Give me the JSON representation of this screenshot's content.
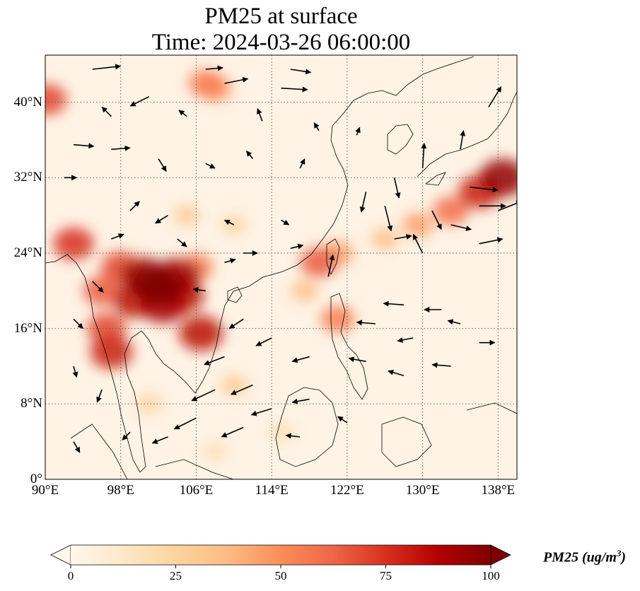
{
  "title": {
    "line1": "PM25 at surface",
    "line2": "Time: 2024-03-26 06:00:00"
  },
  "map": {
    "projection": "PlateCarree",
    "lon_range": [
      90,
      140
    ],
    "lat_range": [
      0,
      45
    ],
    "grid_style": "dotted",
    "background_color": "#fef3e5",
    "lat_ticks": [
      {
        "value": 0,
        "label": "0°"
      },
      {
        "value": 8,
        "label": "8°N"
      },
      {
        "value": 16,
        "label": "16°N"
      },
      {
        "value": 24,
        "label": "24°N"
      },
      {
        "value": 32,
        "label": "32°N"
      },
      {
        "value": 40,
        "label": "40°N"
      }
    ],
    "lon_ticks": [
      {
        "value": 90,
        "label": "90°E"
      },
      {
        "value": 98,
        "label": "98°E"
      },
      {
        "value": 106,
        "label": "106°E"
      },
      {
        "value": 114,
        "label": "114°E"
      },
      {
        "value": 122,
        "label": "122°E"
      },
      {
        "value": 130,
        "label": "130°E"
      },
      {
        "value": 138,
        "label": "138°E"
      }
    ]
  },
  "pm25_field": [
    {
      "lon": 102.0,
      "lat": 20.5,
      "value": 100
    },
    {
      "lon": 100.5,
      "lat": 21.5,
      "value": 95
    },
    {
      "lon": 104.0,
      "lat": 21.5,
      "value": 92
    },
    {
      "lon": 102.5,
      "lat": 18.5,
      "value": 90
    },
    {
      "lon": 99.5,
      "lat": 19.0,
      "value": 85
    },
    {
      "lon": 104.5,
      "lat": 19.5,
      "value": 85
    },
    {
      "lon": 106.5,
      "lat": 15.5,
      "value": 85
    },
    {
      "lon": 97.0,
      "lat": 13.5,
      "value": 80
    },
    {
      "lon": 96.5,
      "lat": 16.0,
      "value": 70
    },
    {
      "lon": 96.0,
      "lat": 20.0,
      "value": 65
    },
    {
      "lon": 93.0,
      "lat": 25.0,
      "value": 75
    },
    {
      "lon": 98.0,
      "lat": 22.5,
      "value": 70
    },
    {
      "lon": 106.0,
      "lat": 22.5,
      "value": 55
    },
    {
      "lon": 90.2,
      "lat": 40.3,
      "value": 70
    },
    {
      "lon": 107.0,
      "lat": 42.0,
      "value": 55
    },
    {
      "lon": 108.0,
      "lat": 41.5,
      "value": 50
    },
    {
      "lon": 138.5,
      "lat": 32.0,
      "value": 95
    },
    {
      "lon": 136.0,
      "lat": 30.5,
      "value": 80
    },
    {
      "lon": 133.0,
      "lat": 28.5,
      "value": 60
    },
    {
      "lon": 129.5,
      "lat": 27.0,
      "value": 45
    },
    {
      "lon": 126.0,
      "lat": 25.5,
      "value": 35
    },
    {
      "lon": 119.0,
      "lat": 23.0,
      "value": 65
    },
    {
      "lon": 121.0,
      "lat": 24.0,
      "value": 45
    },
    {
      "lon": 117.5,
      "lat": 20.0,
      "value": 35
    },
    {
      "lon": 121.0,
      "lat": 17.0,
      "value": 55
    },
    {
      "lon": 110.0,
      "lat": 27.0,
      "value": 25
    },
    {
      "lon": 105.0,
      "lat": 28.0,
      "value": 30
    },
    {
      "lon": 110.0,
      "lat": 10.0,
      "value": 30
    },
    {
      "lon": 101.0,
      "lat": 8.0,
      "value": 25
    },
    {
      "lon": 108.0,
      "lat": 3.0,
      "value": 20
    },
    {
      "lon": 115.0,
      "lat": 5.0,
      "value": 20
    }
  ],
  "wind_vectors": [
    {
      "lon": 101,
      "lat": 40.6,
      "u": -1.2,
      "v": -0.6
    },
    {
      "lon": 109,
      "lat": 42.0,
      "u": 1.5,
      "v": 0.3
    },
    {
      "lon": 116,
      "lat": 43.5,
      "u": 1.3,
      "v": -0.2
    },
    {
      "lon": 107,
      "lat": 43.5,
      "u": 1.1,
      "v": 0.1
    },
    {
      "lon": 95,
      "lat": 43.5,
      "u": 1.8,
      "v": 0.2
    },
    {
      "lon": 115,
      "lat": 41.5,
      "u": 1.7,
      "v": -0.1
    },
    {
      "lon": 93,
      "lat": 35.5,
      "u": 1.3,
      "v": -0.1
    },
    {
      "lon": 97,
      "lat": 35.0,
      "u": 1.2,
      "v": 0.1
    },
    {
      "lon": 92,
      "lat": 32.0,
      "u": 0.8,
      "v": 0.0
    },
    {
      "lon": 102,
      "lat": 34.0,
      "u": 0.5,
      "v": -0.8
    },
    {
      "lon": 107,
      "lat": 33.5,
      "u": 0.6,
      "v": -0.3
    },
    {
      "lon": 112,
      "lat": 34.0,
      "u": -0.4,
      "v": 0.5
    },
    {
      "lon": 117,
      "lat": 33.0,
      "u": 0.3,
      "v": 0.6
    },
    {
      "lon": 99,
      "lat": 28.5,
      "u": 0.6,
      "v": 0.6
    },
    {
      "lon": 103,
      "lat": 28.0,
      "u": -0.8,
      "v": -0.5
    },
    {
      "lon": 110,
      "lat": 27.0,
      "u": -0.6,
      "v": 0.3
    },
    {
      "lon": 115,
      "lat": 27.5,
      "u": 0.5,
      "v": -0.3
    },
    {
      "lon": 111,
      "lat": 24.0,
      "u": 0.9,
      "v": 0.0
    },
    {
      "lon": 116,
      "lat": 24.5,
      "u": 0.8,
      "v": 0.2
    },
    {
      "lon": 120,
      "lat": 21.5,
      "u": 0.3,
      "v": 1.4
    },
    {
      "lon": 124,
      "lat": 30.5,
      "u": -0.3,
      "v": -1.3
    },
    {
      "lon": 126,
      "lat": 29.0,
      "u": 0.4,
      "v": -1.6
    },
    {
      "lon": 127,
      "lat": 32.0,
      "u": 0.3,
      "v": -1.3
    },
    {
      "lon": 130,
      "lat": 33.0,
      "u": 0.1,
      "v": 1.6
    },
    {
      "lon": 131,
      "lat": 28.5,
      "u": 0.6,
      "v": -1.2
    },
    {
      "lon": 134,
      "lat": 35.0,
      "u": 0.2,
      "v": 1.2
    },
    {
      "lon": 137,
      "lat": 39.5,
      "u": 0.8,
      "v": 1.3
    },
    {
      "lon": 135,
      "lat": 31.0,
      "u": 1.8,
      "v": -0.2
    },
    {
      "lon": 136,
      "lat": 29.0,
      "u": 1.7,
      "v": 0.0
    },
    {
      "lon": 138,
      "lat": 28.5,
      "u": 1.5,
      "v": 0.6
    },
    {
      "lon": 136,
      "lat": 25.0,
      "u": 1.5,
      "v": 0.3
    },
    {
      "lon": 133,
      "lat": 27.0,
      "u": 1.3,
      "v": -0.3
    },
    {
      "lon": 130,
      "lat": 24.0,
      "u": -0.6,
      "v": 1.2
    },
    {
      "lon": 127,
      "lat": 25.5,
      "u": 1.1,
      "v": 0.2
    },
    {
      "lon": 128,
      "lat": 18.5,
      "u": -1.3,
      "v": 0.1
    },
    {
      "lon": 132,
      "lat": 18.0,
      "u": -1.1,
      "v": 0.0
    },
    {
      "lon": 125,
      "lat": 16.5,
      "u": -1.2,
      "v": 0.1
    },
    {
      "lon": 129,
      "lat": 15.0,
      "u": -1.0,
      "v": -0.2
    },
    {
      "lon": 134,
      "lat": 16.5,
      "u": -0.8,
      "v": 0.2
    },
    {
      "lon": 136,
      "lat": 14.5,
      "u": 1.0,
      "v": 0.0
    },
    {
      "lon": 124,
      "lat": 12.5,
      "u": -1.1,
      "v": 0.2
    },
    {
      "lon": 128,
      "lat": 11.0,
      "u": -1.0,
      "v": 0.3
    },
    {
      "lon": 133,
      "lat": 12.0,
      "u": -1.2,
      "v": 0.1
    },
    {
      "lon": 118,
      "lat": 13.0,
      "u": -1.1,
      "v": -0.3
    },
    {
      "lon": 114,
      "lat": 15.0,
      "u": -1.0,
      "v": -0.5
    },
    {
      "lon": 111,
      "lat": 17.0,
      "u": -0.9,
      "v": -0.6
    },
    {
      "lon": 109,
      "lat": 13.0,
      "u": -1.3,
      "v": -0.5
    },
    {
      "lon": 112,
      "lat": 10.0,
      "u": -1.4,
      "v": -0.6
    },
    {
      "lon": 108,
      "lat": 9.5,
      "u": -1.5,
      "v": -0.7
    },
    {
      "lon": 114,
      "lat": 7.5,
      "u": -1.3,
      "v": -0.4
    },
    {
      "lon": 118,
      "lat": 8.5,
      "u": -1.1,
      "v": -0.2
    },
    {
      "lon": 111,
      "lat": 5.5,
      "u": -1.4,
      "v": -0.6
    },
    {
      "lon": 106,
      "lat": 6.5,
      "u": -1.4,
      "v": -0.7
    },
    {
      "lon": 103,
      "lat": 4.5,
      "u": -1.0,
      "v": -0.4
    },
    {
      "lon": 117,
      "lat": 4.5,
      "u": -0.9,
      "v": 0.1
    },
    {
      "lon": 122,
      "lat": 6.0,
      "u": -0.6,
      "v": 0.4
    },
    {
      "lon": 96,
      "lat": 9.5,
      "u": -0.3,
      "v": -0.8
    },
    {
      "lon": 93,
      "lat": 12.0,
      "u": 0.2,
      "v": -0.7
    },
    {
      "lon": 93,
      "lat": 4.0,
      "u": 0.4,
      "v": -0.7
    },
    {
      "lon": 99,
      "lat": 5.0,
      "u": -0.5,
      "v": -0.5
    },
    {
      "lon": 95,
      "lat": 21.0,
      "u": 0.7,
      "v": -0.7
    },
    {
      "lon": 93,
      "lat": 17.0,
      "u": 0.6,
      "v": -0.6
    },
    {
      "lon": 107,
      "lat": 20.0,
      "u": -0.8,
      "v": 0.1
    },
    {
      "lon": 109,
      "lat": 23.0,
      "u": 0.7,
      "v": 0.2
    },
    {
      "lon": 104,
      "lat": 25.5,
      "u": 0.6,
      "v": -0.5
    },
    {
      "lon": 97,
      "lat": 25.5,
      "u": 0.8,
      "v": 0.3
    },
    {
      "lon": 123,
      "lat": 36.5,
      "u": 0.2,
      "v": 0.5
    },
    {
      "lon": 119,
      "lat": 37.0,
      "u": -0.3,
      "v": 0.5
    },
    {
      "lon": 113,
      "lat": 38.0,
      "u": -0.3,
      "v": 0.8
    },
    {
      "lon": 105,
      "lat": 38.5,
      "u": -0.5,
      "v": 0.4
    },
    {
      "lon": 97,
      "lat": 38.5,
      "u": -0.6,
      "v": 0.6
    }
  ],
  "colorbar": {
    "label_main": "PM25 (ug/m",
    "label_sup": "3",
    "label_close": ")",
    "cmap": "OrRd",
    "range": [
      0,
      100
    ],
    "extend": "both",
    "ticks": [
      {
        "value": 0,
        "label": "0"
      },
      {
        "value": 25,
        "label": "25"
      },
      {
        "value": 50,
        "label": "50"
      },
      {
        "value": 75,
        "label": "75"
      },
      {
        "value": 100,
        "label": "100"
      }
    ],
    "colors": [
      "#fff7ec",
      "#fee8c8",
      "#fdd49e",
      "#fdbb84",
      "#fc8d59",
      "#ef6548",
      "#d7301f",
      "#b30000",
      "#7f0000"
    ]
  }
}
